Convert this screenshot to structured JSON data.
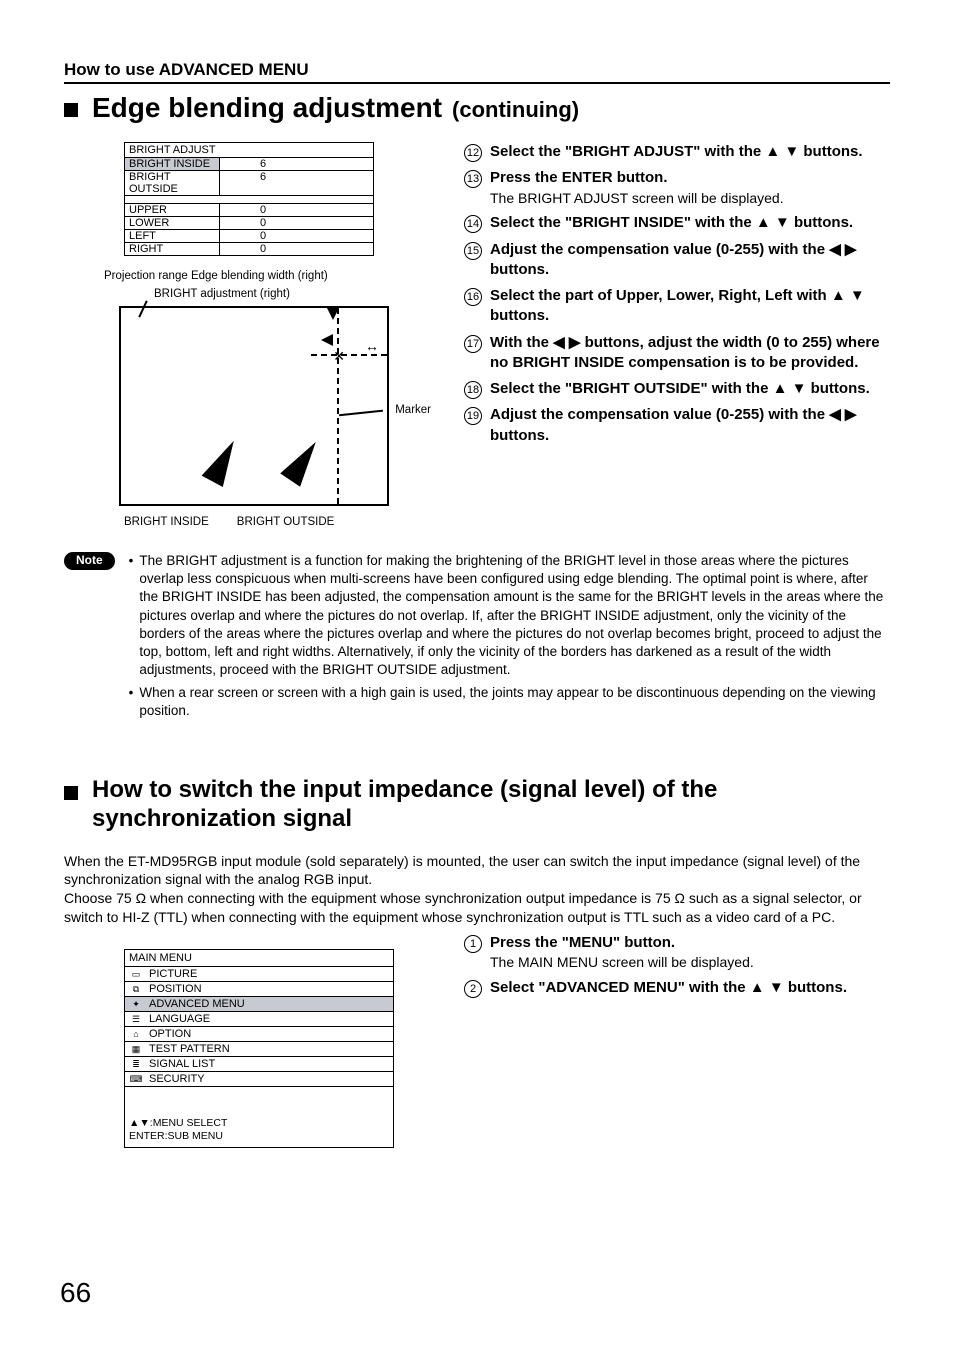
{
  "section_label": "How to use ADVANCED MENU",
  "heading1": "Edge blending adjustment",
  "heading1_sub": "(continuing)",
  "bright_table": {
    "title": "BRIGHT ADJUST",
    "rows_top": [
      {
        "label": "BRIGHT INSIDE",
        "value": "6",
        "hl": true
      },
      {
        "label": "BRIGHT OUTSIDE",
        "value": "6",
        "hl": false
      }
    ],
    "rows_bottom": [
      {
        "label": "UPPER",
        "value": "0"
      },
      {
        "label": "LOWER",
        "value": "0"
      },
      {
        "label": "LEFT",
        "value": "0"
      },
      {
        "label": "RIGHT",
        "value": "0"
      }
    ]
  },
  "diagram": {
    "caption_top": "Projection range    Edge blending width (right)",
    "caption_sub": "BRIGHT adjustment (right)",
    "marker": "Marker",
    "bottom_left": "BRIGHT INSIDE",
    "bottom_right": "BRIGHT OUTSIDE"
  },
  "steps1": [
    {
      "n": "12",
      "bold": "Select the \"BRIGHT ADJUST\" with the ▲ ▼ buttons."
    },
    {
      "n": "13",
      "bold": "Press the ENTER button.",
      "plain": "The BRIGHT ADJUST screen will be displayed."
    },
    {
      "n": "14",
      "bold": "Select the \"BRIGHT INSIDE\" with the ▲ ▼ buttons."
    },
    {
      "n": "15",
      "bold": "Adjust the compensation value (0-255) with the ◀ ▶ buttons."
    },
    {
      "n": "16",
      "bold": "Select the part of Upper, Lower, Right, Left with ▲ ▼ buttons."
    },
    {
      "n": "17",
      "bold": "With the ◀ ▶ buttons, adjust the width (0 to 255) where no BRIGHT INSIDE compensation is to be provided."
    },
    {
      "n": "18",
      "bold": "Select the \"BRIGHT OUTSIDE\" with the ▲ ▼ buttons."
    },
    {
      "n": "19",
      "bold": "Adjust the compensation value (0-255) with the ◀ ▶ buttons."
    }
  ],
  "note_label": "Note",
  "note_bullets": [
    "The BRIGHT adjustment is a function for making the brightening of the BRIGHT level in those areas where the pictures overlap less conspicuous when multi-screens have been configured using edge blending.  The optimal point is where, after the BRIGHT INSIDE has been adjusted, the compensation amount is the same for the BRIGHT levels in the areas where the pictures overlap and where the pictures do not overlap.  If, after the BRIGHT INSIDE adjustment, only the vicinity of the borders of the areas where the pictures overlap and where the pictures do not overlap becomes bright, proceed to adjust the top, bottom, left and right widths.  Alternatively, if only the vicinity of the borders has darkened as a result of the width adjustments, proceed with the BRIGHT OUTSIDE adjustment.",
    "When a rear screen or screen with a high gain is used, the joints may appear to be discontinuous depending on the viewing position."
  ],
  "heading2": "How to switch the input impedance (signal level) of the synchronization signal",
  "para2": "When the ET-MD95RGB input module (sold separately) is mounted, the user can switch the input impedance (signal level) of the synchronization signal with the analog RGB input.\nChoose 75 Ω when connecting with the equipment whose synchronization output impedance is 75 Ω such as a signal selector, or switch to HI-Z (TTL) when connecting with the equipment whose synchronization output is TTL such as a video card of a PC.",
  "main_menu": {
    "title": "MAIN MENU",
    "items": [
      {
        "icon": "▭",
        "label": "PICTURE",
        "hl": false
      },
      {
        "icon": "⧉",
        "label": "POSITION",
        "hl": false
      },
      {
        "icon": "✦",
        "label": "ADVANCED MENU",
        "hl": true
      },
      {
        "icon": "☰",
        "label": "LANGUAGE",
        "hl": false
      },
      {
        "icon": "⌂",
        "label": "OPTION",
        "hl": false
      },
      {
        "icon": "▦",
        "label": "TEST PATTERN",
        "hl": false
      },
      {
        "icon": "≣",
        "label": "SIGNAL LIST",
        "hl": false
      },
      {
        "icon": "⌨",
        "label": "SECURITY",
        "hl": false
      }
    ],
    "footer1": "▲▼:MENU SELECT",
    "footer2": "ENTER:SUB MENU"
  },
  "steps2": [
    {
      "n": "1",
      "bold": "Press the \"MENU\" button.",
      "plain": "The MAIN MENU screen will be displayed."
    },
    {
      "n": "2",
      "bold": "Select \"ADVANCED MENU\" with the ▲ ▼ buttons."
    }
  ],
  "page_number": "66"
}
